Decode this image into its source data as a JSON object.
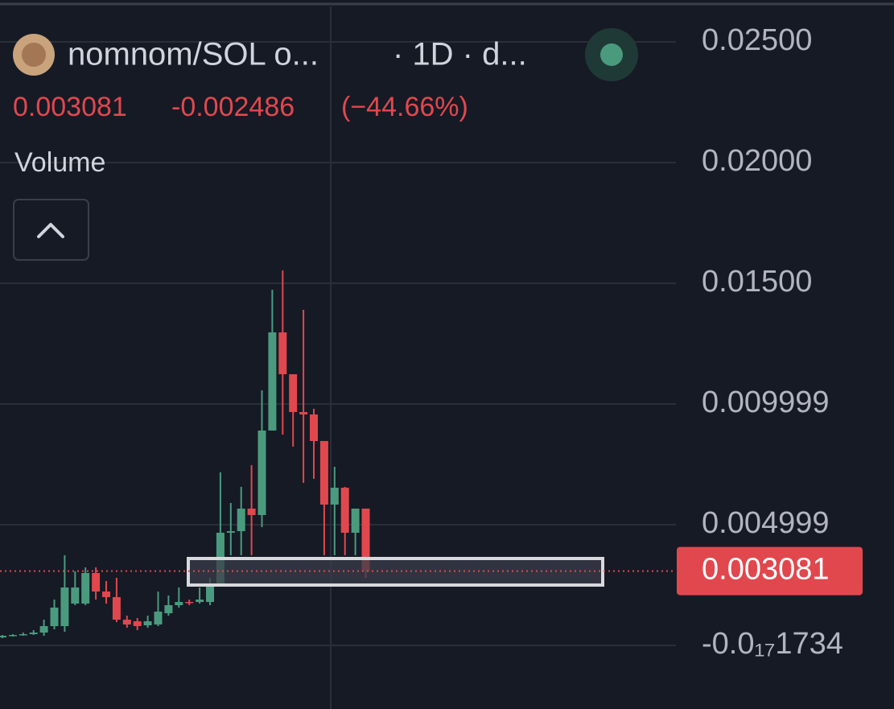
{
  "chart_data": {
    "type": "candlestick",
    "title": "nomnom/SOL o...",
    "interval": "· 1D · d...",
    "last_price": 0.003081,
    "change": -0.002486,
    "change_percent": {
      "value": -44.66,
      "label": "(−44.66%)"
    },
    "indicator": "Volume",
    "up_color": "#4a9b7e",
    "down_color": "#e0484e",
    "grid": true,
    "ylim": [
      -0.002633,
      0.026733
    ],
    "yticks": [
      {
        "value": -1.734e-18,
        "label": "-0.0₁₇1734"
      },
      0.004999,
      0.009999,
      {
        "value": 0.015,
        "label": "0.01500"
      },
      {
        "value": 0.02,
        "label": "0.02000"
      },
      {
        "value": 0.025,
        "label": "0.02500"
      }
    ],
    "open": [
      0.000333,
      0.0004,
      0.000433,
      0.000467,
      0.000533,
      0.0008,
      0.0008,
      0.001733,
      0.001733,
      0.003,
      0.002233,
      0.002,
      0.001067,
      0.001,
      0.000833,
      0.000867,
      0.001333,
      0.001667,
      0.0018,
      0.0018,
      0.0018,
      0.002567,
      0.004667,
      0.004733,
      0.005667,
      0.0054,
      0.0089,
      0.012967,
      0.011233,
      0.009667,
      0.009567,
      0.008467,
      0.005833,
      0.006533,
      0.004667,
      0.005667
    ],
    "high": [
      0.000433,
      0.000467,
      0.000533,
      0.000633,
      0.001067,
      0.0019,
      0.003733,
      0.003067,
      0.003233,
      0.003233,
      0.002667,
      0.0028,
      0.001233,
      0.001133,
      0.001233,
      0.002233,
      0.002067,
      0.0024,
      0.0019,
      0.0024,
      0.0028,
      0.007167,
      0.0059,
      0.006567,
      0.007467,
      0.010567,
      0.014733,
      0.015533,
      0.011233,
      0.0139,
      0.0098,
      0.008467,
      0.0074,
      0.006567,
      0.005667,
      0.005667
    ],
    "low": [
      0.0003,
      0.000367,
      0.0004,
      0.000433,
      0.0004,
      0.000667,
      0.000567,
      0.001667,
      0.001667,
      0.0019,
      0.001733,
      0.000967,
      0.000733,
      0.000633,
      0.000733,
      0.0008,
      0.001233,
      0.001567,
      0.001667,
      0.001733,
      0.001667,
      0.002467,
      0.003733,
      0.003733,
      0.003733,
      0.0049,
      0.0089,
      0.008733,
      0.008233,
      0.006733,
      0.0069,
      0.003733,
      0.003733,
      0.003733,
      0.003733,
      0.0028
    ],
    "close": [
      0.0004,
      0.000433,
      0.000467,
      0.000533,
      0.0008,
      0.001567,
      0.0024,
      0.0024,
      0.003,
      0.002233,
      0.002,
      0.001067,
      0.000867,
      0.0008,
      0.001,
      0.0014,
      0.001667,
      0.0018,
      0.001767,
      0.0019,
      0.002567,
      0.004667,
      0.004733,
      0.005667,
      0.0054,
      0.0089,
      0.012967,
      0.011233,
      0.009667,
      0.009567,
      0.008467,
      0.005833,
      0.006533,
      0.004667,
      0.005667,
      0.003081
    ]
  }
}
